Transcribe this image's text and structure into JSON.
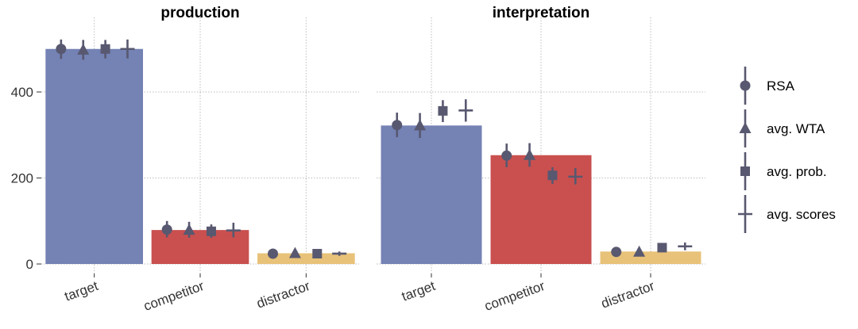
{
  "chart_data": {
    "type": "bar",
    "facets": [
      "production",
      "interpretation"
    ],
    "categories": [
      "target",
      "competitor",
      "distractor"
    ],
    "bar_colors": [
      "#7482b4",
      "#c9504f",
      "#e8c279"
    ],
    "marker_color": "#585870",
    "ylim": [
      0,
      540
    ],
    "yticks": [
      0,
      200,
      400
    ],
    "grid": true,
    "legend_position": "right",
    "bars": {
      "production": [
        500,
        79,
        25
      ],
      "interpretation": [
        322,
        253,
        29
      ]
    },
    "series": [
      {
        "name": "RSA",
        "marker": "circle",
        "production": [
          [
            500,
            477,
            522
          ],
          [
            80,
            62,
            100
          ],
          [
            24,
            19,
            30
          ]
        ],
        "interpretation": [
          [
            323,
            295,
            352
          ],
          [
            252,
            225,
            280
          ],
          [
            28,
            20,
            36
          ]
        ]
      },
      {
        "name": "avg. WTA",
        "marker": "triangle",
        "production": [
          [
            498,
            475,
            521
          ],
          [
            79,
            61,
            98
          ],
          [
            25,
            20,
            30
          ]
        ],
        "interpretation": [
          [
            322,
            293,
            351
          ],
          [
            253,
            226,
            281
          ],
          [
            28,
            20,
            35
          ]
        ]
      },
      {
        "name": "avg. prob.",
        "marker": "square",
        "production": [
          [
            500,
            478,
            521
          ],
          [
            76,
            61,
            92
          ],
          [
            24,
            20,
            29
          ]
        ],
        "interpretation": [
          [
            356,
            330,
            381
          ],
          [
            206,
            186,
            225
          ],
          [
            38,
            29,
            47
          ]
        ]
      },
      {
        "name": "avg. scores",
        "marker": "cross",
        "production": [
          [
            500,
            478,
            522
          ],
          [
            78,
            62,
            96
          ],
          [
            24,
            19,
            29
          ]
        ],
        "interpretation": [
          [
            357,
            331,
            383
          ],
          [
            203,
            185,
            223
          ],
          [
            41,
            32,
            50
          ]
        ]
      }
    ]
  }
}
